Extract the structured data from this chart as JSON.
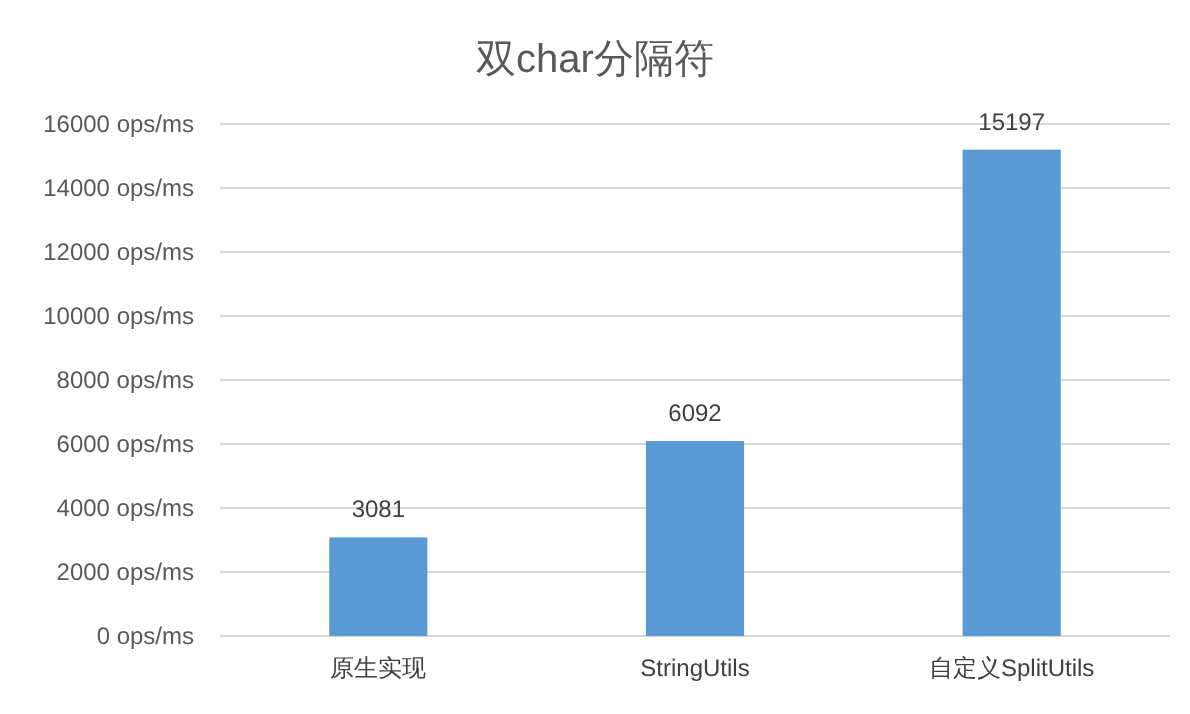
{
  "chart_data": {
    "type": "bar",
    "title": "双char分隔符",
    "categories": [
      "原生实现",
      "StringUtils",
      "自定义SplitUtils"
    ],
    "values": [
      3081,
      6092,
      15197
    ],
    "color": "#5b9bd5",
    "data_labels": true,
    "grid": "y",
    "ylim": [
      0,
      16000
    ],
    "yticks": [
      {
        "value": 0,
        "label": "0 ops/ms"
      },
      {
        "value": 2000,
        "label": "2000 ops/ms"
      },
      {
        "value": 4000,
        "label": "4000 ops/ms"
      },
      {
        "value": 6000,
        "label": "6000 ops/ms"
      },
      {
        "value": 8000,
        "label": "8000 ops/ms"
      },
      {
        "value": 10000,
        "label": "10000 ops/ms"
      },
      {
        "value": 12000,
        "label": "12000 ops/ms"
      },
      {
        "value": 14000,
        "label": "14000 ops/ms"
      },
      {
        "value": 16000,
        "label": "16000 ops/ms"
      }
    ]
  }
}
